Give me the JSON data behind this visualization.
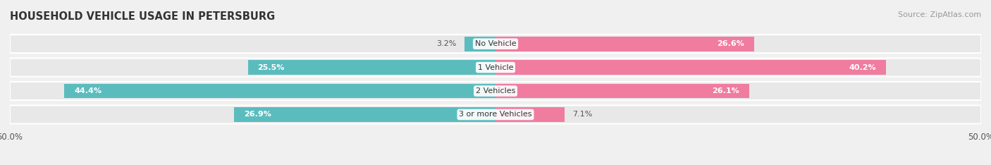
{
  "title": "HOUSEHOLD VEHICLE USAGE IN PETERSBURG",
  "source": "Source: ZipAtlas.com",
  "categories": [
    "No Vehicle",
    "1 Vehicle",
    "2 Vehicles",
    "3 or more Vehicles"
  ],
  "owner_values": [
    3.2,
    25.5,
    44.4,
    26.9
  ],
  "renter_values": [
    26.6,
    40.2,
    26.1,
    7.1
  ],
  "owner_color": "#5bbcbe",
  "renter_color": "#f07ca0",
  "background_color": "#f0f0f0",
  "row_bg_color": "#e8e8e8",
  "xlim": [
    -50,
    50
  ],
  "title_fontsize": 10.5,
  "source_fontsize": 8,
  "label_fontsize": 8,
  "category_fontsize": 8,
  "legend_fontsize": 8.5
}
